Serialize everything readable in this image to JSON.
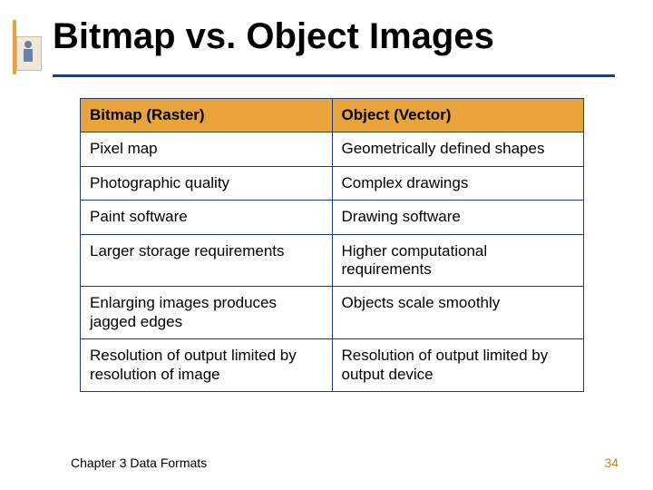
{
  "colors": {
    "accent": "#e8a43a",
    "underline": "#1f3d7a",
    "table_border": "#1f3d7a",
    "header_bg": "#e8a43a",
    "header_text": "#000000",
    "cell_bg": "#ffffff",
    "cell_text": "#000000",
    "page_number": "#b38b2e"
  },
  "title": "Bitmap vs. Object Images",
  "table": {
    "headers": [
      "Bitmap (Raster)",
      "Object (Vector)"
    ],
    "rows": [
      [
        "Pixel map",
        "Geometrically defined shapes"
      ],
      [
        "Photographic quality",
        "Complex drawings"
      ],
      [
        "Paint software",
        "Drawing software"
      ],
      [
        "Larger storage requirements",
        "Higher computational requirements"
      ],
      [
        "Enlarging images produces jagged edges",
        "Objects scale smoothly"
      ],
      [
        "Resolution of output limited by resolution of image",
        "Resolution of output limited by output device"
      ]
    ]
  },
  "footer": {
    "chapter": "Chapter 3 Data Formats",
    "page": "34"
  }
}
